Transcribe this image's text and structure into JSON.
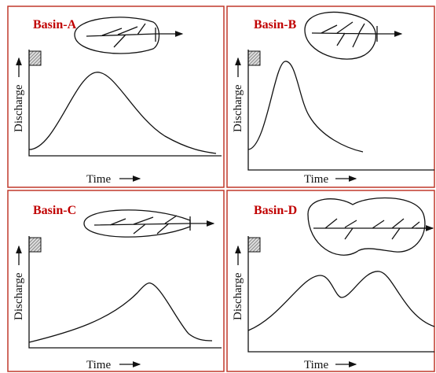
{
  "panels": [
    {
      "title": "Basin-A",
      "x_label": "Time",
      "y_label": "Discharge"
    },
    {
      "title": "Basin-B",
      "x_label": "Time",
      "y_label": "Discharge"
    },
    {
      "title": "Basin-C",
      "x_label": "Time",
      "y_label": "Discharge"
    },
    {
      "title": "Basin-D",
      "x_label": "Time",
      "y_label": "Discharge"
    }
  ]
}
